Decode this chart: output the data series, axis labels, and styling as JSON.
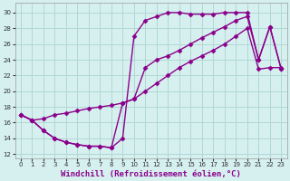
{
  "bg_color": "#d6f0ef",
  "grid_color": "#b0d8d5",
  "line_color": "#8b008b",
  "marker": "D",
  "markersize": 2.5,
  "linewidth": 1.0,
  "xlabel": "Windchill (Refroidissement éolien,°C)",
  "xlabel_fontsize": 6.5,
  "ylabel_ticks": [
    12,
    14,
    16,
    18,
    20,
    22,
    24,
    26,
    28,
    30
  ],
  "ylim": [
    11.5,
    31.2
  ],
  "xlim": [
    -0.5,
    23.5
  ],
  "xticks": [
    0,
    1,
    2,
    3,
    4,
    5,
    6,
    7,
    8,
    9,
    10,
    11,
    12,
    13,
    14,
    15,
    16,
    17,
    18,
    19,
    20,
    21,
    22,
    23
  ],
  "curve1_x": [
    0,
    1,
    2,
    3,
    4,
    5,
    6,
    7,
    8,
    9,
    10,
    11,
    12,
    13,
    14,
    15,
    16,
    17,
    18,
    19,
    20,
    21,
    22,
    23
  ],
  "curve1_y": [
    17.0,
    16.3,
    15.0,
    14.0,
    13.5,
    13.2,
    13.0,
    13.0,
    12.8,
    14.0,
    27.0,
    29.0,
    29.5,
    30.0,
    30.0,
    29.8,
    29.8,
    29.8,
    30.0,
    30.0,
    30.0,
    24.0,
    28.2,
    22.8
  ],
  "curve2_x": [
    0,
    1,
    2,
    3,
    4,
    5,
    6,
    7,
    8,
    9,
    10,
    11,
    12,
    13,
    14,
    15,
    16,
    17,
    18,
    19,
    20,
    21,
    22,
    23
  ],
  "curve2_y": [
    17.0,
    16.3,
    15.0,
    14.0,
    13.5,
    13.2,
    13.0,
    13.0,
    12.8,
    18.5,
    19.0,
    23.0,
    24.0,
    24.5,
    25.2,
    26.0,
    26.8,
    27.5,
    28.2,
    29.0,
    29.5,
    24.0,
    28.2,
    22.8
  ],
  "curve3_x": [
    0,
    1,
    2,
    3,
    4,
    5,
    6,
    7,
    8,
    9,
    10,
    11,
    12,
    13,
    14,
    15,
    16,
    17,
    18,
    19,
    20,
    21,
    22,
    23
  ],
  "curve3_y": [
    17.0,
    16.3,
    16.5,
    17.0,
    17.2,
    17.5,
    17.8,
    18.0,
    18.2,
    18.5,
    19.0,
    20.0,
    21.0,
    22.0,
    23.0,
    23.8,
    24.5,
    25.2,
    26.0,
    27.0,
    28.0,
    22.8,
    23.0,
    23.0
  ]
}
